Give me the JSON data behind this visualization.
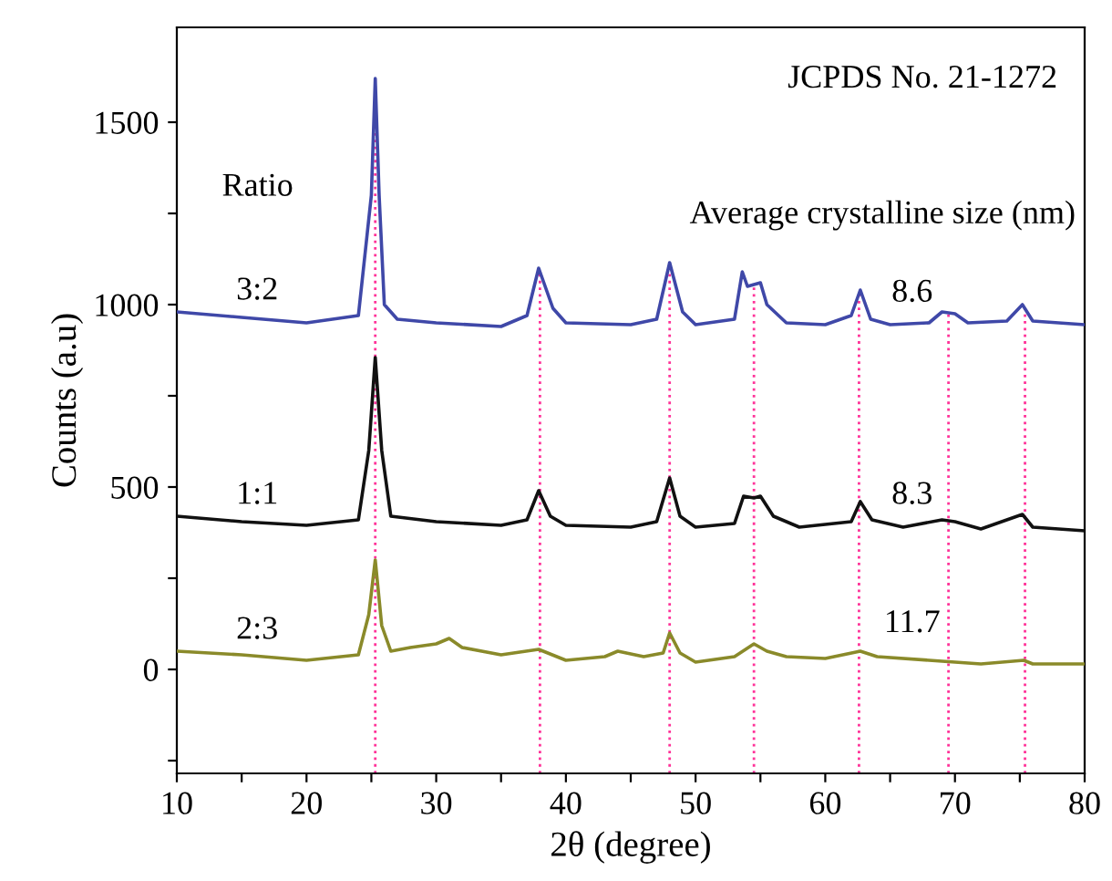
{
  "chart_data": {
    "type": "line",
    "xlabel": "2θ (degree)",
    "ylabel": "Counts (a.u)",
    "xlim": [
      10,
      80
    ],
    "ylim": [
      -285,
      1760
    ],
    "xticks": [
      10,
      {
        "value": 15,
        "label": null
      },
      20,
      {
        "value": 25,
        "label": null
      },
      30,
      {
        "value": 35,
        "label": null
      },
      40,
      {
        "value": 45,
        "label": null
      },
      50,
      {
        "value": 55,
        "label": null
      },
      60,
      {
        "value": 65,
        "label": null
      },
      70,
      {
        "value": 75,
        "label": null
      },
      80
    ],
    "yticks": [
      {
        "value": -250,
        "label": null
      },
      0,
      {
        "value": 250,
        "label": null
      },
      500,
      {
        "value": 750,
        "label": null
      },
      1000,
      {
        "value": 1250,
        "label": null
      },
      1500
    ],
    "grid": false,
    "legend": false,
    "marker": "none",
    "line_style": "solid",
    "series": [
      {
        "name": "3:2",
        "color": "#3f48a8",
        "x": [
          10,
          15,
          20,
          24,
          25,
          25.3,
          25.6,
          26,
          27,
          30,
          35,
          37,
          37.9,
          39,
          40,
          45,
          47,
          48,
          49,
          50,
          53,
          53.6,
          54,
          55,
          55.5,
          57,
          60,
          62,
          62.7,
          63.5,
          65,
          68,
          69,
          70,
          71,
          74,
          75.2,
          76,
          80
        ],
        "values": [
          980,
          965,
          950,
          970,
          1300,
          1620,
          1300,
          1000,
          960,
          950,
          940,
          970,
          1100,
          990,
          950,
          945,
          960,
          1115,
          980,
          945,
          960,
          1090,
          1050,
          1060,
          1000,
          950,
          945,
          970,
          1040,
          960,
          945,
          950,
          980,
          975,
          950,
          955,
          1000,
          955,
          945
        ]
      },
      {
        "name": "1:1",
        "color": "#111111",
        "x": [
          10,
          15,
          20,
          24,
          24.8,
          25.3,
          25.8,
          26.5,
          30,
          35,
          37,
          37.9,
          38.8,
          40,
          45,
          47,
          48,
          48.8,
          50,
          53,
          53.7,
          54.5,
          55,
          56,
          58,
          62,
          62.7,
          63.6,
          66,
          69,
          70,
          72,
          75.2,
          76,
          80
        ],
        "values": [
          420,
          405,
          395,
          410,
          600,
          855,
          600,
          420,
          405,
          395,
          410,
          490,
          420,
          395,
          390,
          405,
          525,
          420,
          390,
          400,
          475,
          470,
          475,
          420,
          390,
          405,
          460,
          410,
          390,
          410,
          405,
          385,
          425,
          390,
          380
        ]
      },
      {
        "name": "2:3",
        "color": "#8a8a2a",
        "x": [
          10,
          15,
          20,
          24,
          24.8,
          25.3,
          25.8,
          26.5,
          28,
          30,
          31,
          32,
          35,
          37.9,
          40,
          43,
          44,
          46,
          47.5,
          48,
          48.8,
          50,
          53,
          54.5,
          55.5,
          57,
          60,
          62.7,
          64,
          68,
          70,
          72,
          75.3,
          76,
          80
        ],
        "values": [
          50,
          40,
          25,
          40,
          150,
          300,
          120,
          50,
          60,
          70,
          85,
          60,
          40,
          55,
          25,
          35,
          50,
          35,
          45,
          100,
          45,
          20,
          35,
          70,
          50,
          35,
          30,
          50,
          35,
          25,
          20,
          15,
          25,
          15,
          15
        ]
      }
    ],
    "ref_lines": [
      {
        "axis": "x",
        "value": 25.3,
        "color": "#ff3399",
        "line_style": "dotted"
      },
      {
        "axis": "x",
        "value": 38.0,
        "color": "#ff3399",
        "line_style": "dotted"
      },
      {
        "axis": "x",
        "value": 48.0,
        "color": "#ff3399",
        "line_style": "dotted"
      },
      {
        "axis": "x",
        "value": 54.5,
        "color": "#ff3399",
        "line_style": "dotted"
      },
      {
        "axis": "x",
        "value": 62.6,
        "color": "#ff3399",
        "line_style": "dotted"
      },
      {
        "axis": "x",
        "value": 69.5,
        "color": "#ff3399",
        "line_style": "dotted"
      },
      {
        "axis": "x",
        "value": 75.4,
        "color": "#ff3399",
        "line_style": "dotted"
      }
    ],
    "annotations": [
      "JCPDS No. 21-1272",
      "Average crystalline size (nm)",
      "Ratio",
      "8.6",
      "8.3",
      "11.7"
    ]
  }
}
